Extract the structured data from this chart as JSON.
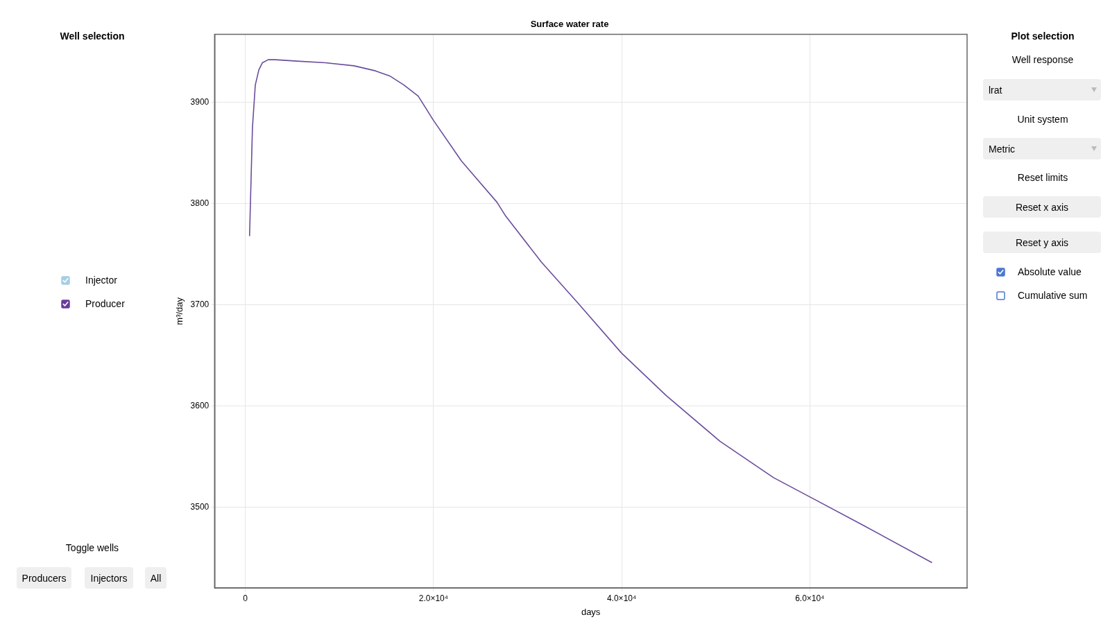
{
  "chart_data": [
    {
      "type": "line",
      "title": "Surface water rate",
      "xlabel": "days",
      "ylabel": "m³/day",
      "x": [
        417,
        456,
        760,
        1063,
        1443,
        1823,
        2430,
        3190,
        5468,
        8507,
        11545,
        13823,
        15342,
        16861,
        18380,
        20000,
        22964,
        26762,
        27673,
        31472,
        35270,
        40000,
        44748,
        50446,
        56144,
        60000,
        65660,
        72990
      ],
      "series": [
        {
          "color": "#6a4c9c",
          "values": [
            3768,
            3769,
            3875,
            3917,
            3932,
            3939,
            3942,
            3942,
            3940.6,
            3939,
            3936,
            3931,
            3926,
            3917,
            3906,
            3882,
            3842,
            3801,
            3787.5,
            3742,
            3702.4,
            3652,
            3610,
            3565,
            3529,
            3510,
            3482,
            3445
          ]
        }
      ],
      "xlim": [
        -3266,
        76720
      ],
      "ylim": [
        3420,
        3967
      ],
      "xticks": [
        0,
        {
          "value": 20000,
          "label": "2.0×10⁴"
        },
        {
          "value": 40000,
          "label": "4.0×10⁴"
        },
        {
          "value": 60000,
          "label": "6.0×10⁴"
        }
      ],
      "yticks": [
        3500,
        3600,
        3700,
        3800,
        3900
      ],
      "grid": true,
      "legend": false,
      "line_style": "solid",
      "marker": "none"
    },
    {
      "type": "other",
      "title": "Well selection",
      "annotations": [
        "Injector",
        "Producer",
        "Toggle wells",
        "Producers",
        "Injectors",
        "All"
      ]
    },
    {
      "type": "other",
      "title": "Plot selection",
      "annotations": [
        "Well response",
        "lrat",
        "Unit system",
        "Metric",
        "Reset limits",
        "Reset x axis",
        "Reset y axis",
        "Absolute value",
        "Cumulative sum"
      ]
    }
  ]
}
